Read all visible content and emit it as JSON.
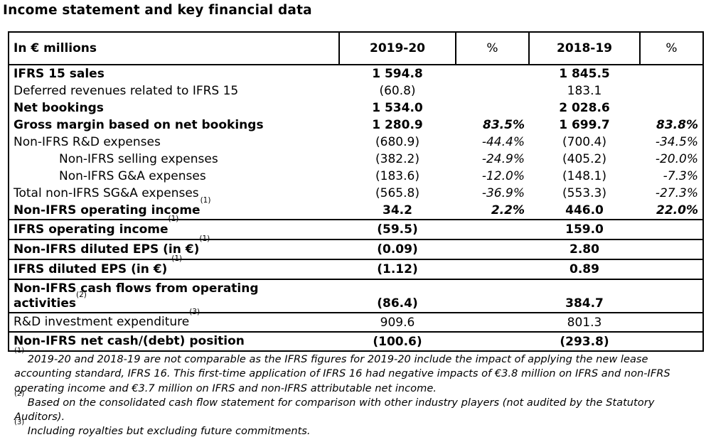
{
  "title": "Income statement and key financial data",
  "table": {
    "header": {
      "label": "In € millions",
      "y1": "2019-20",
      "p1": "%",
      "y2": "2018-19",
      "p2": "%"
    },
    "rows": [
      {
        "label": "IFRS 15 sales",
        "v1": "1 594.8",
        "p1": "",
        "v2": "1 845.5",
        "p2": ""
      },
      {
        "label": "Deferred revenues related to IFRS 15",
        "v1": "(60.8)",
        "p1": "",
        "v2": "183.1",
        "p2": ""
      },
      {
        "label": "Net bookings",
        "v1": "1 534.0",
        "p1": "",
        "v2": "2 028.6",
        "p2": ""
      },
      {
        "label": "Gross margin based on net bookings",
        "v1": "1 280.9",
        "p1": "83.5%",
        "v2": "1 699.7",
        "p2": "83.8%"
      },
      {
        "label": "Non-IFRS R&D expenses",
        "v1": "(680.9)",
        "p1": "-44.4%",
        "v2": "(700.4)",
        "p2": "-34.5%"
      },
      {
        "label": "Non-IFRS selling expenses",
        "v1": "(382.2)",
        "p1": "-24.9%",
        "v2": "(405.2)",
        "p2": "-20.0%"
      },
      {
        "label": "Non-IFRS G&A expenses",
        "v1": "(183.6)",
        "p1": "-12.0%",
        "v2": "(148.1)",
        "p2": "-7.3%"
      },
      {
        "label": "Total non-IFRS SG&A expenses",
        "v1": "(565.8)",
        "p1": "-36.9%",
        "v2": "(553.3)",
        "p2": "-27.3%"
      },
      {
        "label": "Non-IFRS operating income",
        "note": "(1)",
        "v1": "34.2",
        "p1": "2.2%",
        "v2": "446.0",
        "p2": "22.0%"
      },
      {
        "label": "IFRS operating income",
        "note": "(1)",
        "v1": "(59.5)",
        "p1": "",
        "v2": "159.0",
        "p2": ""
      },
      {
        "label": "Non-IFRS diluted EPS (in €)",
        "note": "(1)",
        "v1": "(0.09)",
        "p1": "",
        "v2": "2.80",
        "p2": ""
      },
      {
        "label": "IFRS diluted EPS (in €) ",
        "note": "(1)",
        "v1": "(1.12)",
        "p1": "",
        "v2": "0.89",
        "p2": ""
      },
      {
        "label_line1": "Non-IFRS cash flows from operating",
        "label_line2": "activities",
        "note": "(2)",
        "v1": "(86.4)",
        "p1": "",
        "v2": "384.7",
        "p2": ""
      },
      {
        "label": "R&D investment expenditure",
        "note": "(3)",
        "v1": "909.6",
        "p1": "",
        "v2": "801.3",
        "p2": ""
      },
      {
        "label": "Non-IFRS net cash/(debt) position",
        "v1": "(100.6)",
        "p1": "",
        "v2": "(293.8)",
        "p2": ""
      }
    ]
  },
  "footnotes": [
    {
      "mark": "(1)",
      "text": " 2019-20 and 2018-19 are not comparable as the IFRS figures for 2019-20 include the impact of applying the new lease accounting standard, IFRS 16. This first-time application of IFRS 16 had negative impacts of €3.8 million on IFRS and non-IFRS operating income and €3.7 million on IFRS and non-IFRS attributable net income."
    },
    {
      "mark": "(2)",
      "text": " Based on the consolidated cash flow statement for comparison with other industry players (not audited by the Statutory Auditors)."
    },
    {
      "mark": "(3)",
      "text": " Including royalties but excluding future commitments."
    }
  ]
}
